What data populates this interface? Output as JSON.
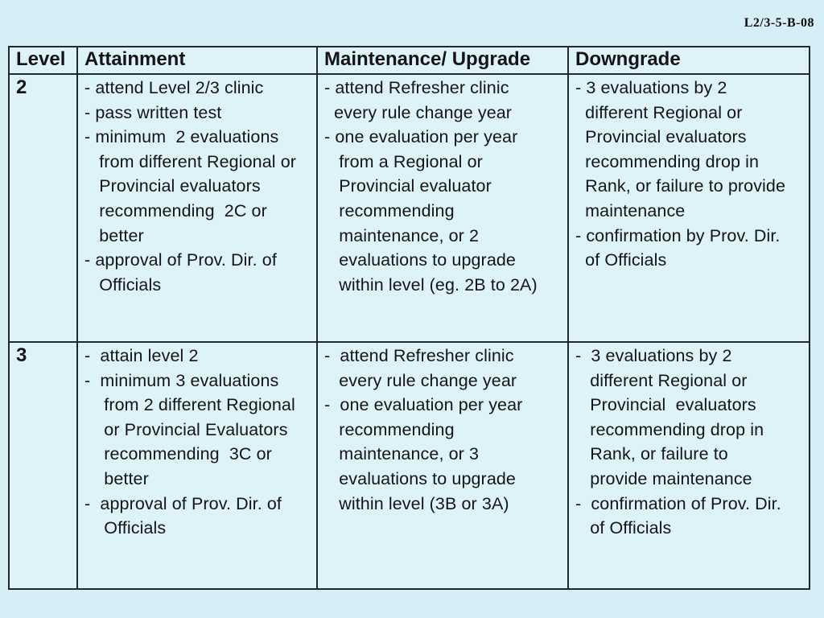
{
  "slide": {
    "code_label": "L2/3-5-B-08",
    "background_color": "#d6eef5",
    "cell_background_color": "#ddf3f8",
    "border_color": "#20272e",
    "text_color": "#141419"
  },
  "table": {
    "headers": {
      "level": "Level",
      "attainment": "Attainment",
      "maintenance_upgrade": "Maintenance/ Upgrade",
      "downgrade": "Downgrade"
    },
    "rows": [
      {
        "level": "2",
        "attainment": "- attend Level 2/3 clinic\n- pass written test\n- minimum  2 evaluations\n   from different Regional or\n   Provincial evaluators\n   recommending  2C or\n   better\n- approval of Prov. Dir. of\n   Officials",
        "maintenance_upgrade": "- attend Refresher clinic\n  every rule change year\n- one evaluation per year\n   from a Regional or\n   Provincial evaluator\n   recommending\n   maintenance, or 2\n   evaluations to upgrade\n   within level (eg. 2B to 2A)",
        "downgrade": "- 3 evaluations by 2\n  different Regional or\n  Provincial evaluators\n  recommending drop in\n  Rank, or failure to provide\n  maintenance\n- confirmation by Prov. Dir.\n  of Officials"
      },
      {
        "level": "3",
        "attainment": "-  attain level 2\n-  minimum 3 evaluations\n    from 2 different Regional\n    or Provincial Evaluators\n    recommending  3C or\n    better\n-  approval of Prov. Dir. of\n    Officials",
        "maintenance_upgrade": "-  attend Refresher clinic\n   every rule change year\n-  one evaluation per year\n   recommending\n   maintenance, or 3\n   evaluations to upgrade\n   within level (3B or 3A)",
        "downgrade": "-  3 evaluations by 2\n   different Regional or\n   Provincial  evaluators\n   recommending drop in\n   Rank, or failure to\n   provide maintenance\n-  confirmation of Prov. Dir.\n   of Officials"
      }
    ]
  }
}
